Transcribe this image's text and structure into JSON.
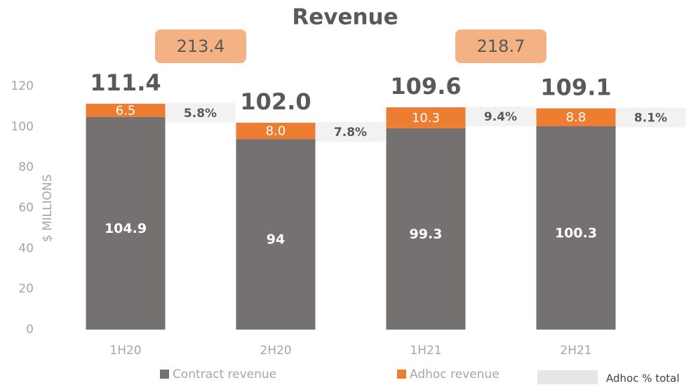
{
  "chart_data": {
    "type": "bar",
    "stacked": true,
    "title": "Revenue",
    "ylabel": "$ MILLIONS",
    "categories": [
      "1H20",
      "2H20",
      "1H21",
      "2H21"
    ],
    "series": [
      {
        "name": "Contract revenue",
        "color": "#767171",
        "values": [
          104.9,
          94,
          99.3,
          100.3
        ]
      },
      {
        "name": "Adhoc revenue",
        "color": "#ed7d31",
        "values": [
          6.5,
          8.0,
          10.3,
          8.8
        ],
        "value_labels": [
          "6.5",
          "8.0",
          "10.3",
          "8.8"
        ]
      }
    ],
    "adhoc_share": {
      "name": "Adhoc % total",
      "color": "#e7e6e6",
      "values": [
        5.8,
        7.8,
        9.4,
        8.1
      ],
      "value_labels": [
        "5.8%",
        "7.8%",
        "9.4%",
        "8.1%"
      ]
    },
    "totals": {
      "values": [
        111.4,
        102.0,
        109.6,
        109.1
      ],
      "value_labels": [
        "111.4",
        "102.0",
        "109.6",
        "109.1"
      ]
    },
    "annual_totals": {
      "color": "#f4b183",
      "values": [
        213.4,
        218.7
      ]
    },
    "ylim": [
      0,
      120
    ],
    "yticks": [
      0,
      20,
      40,
      60,
      80,
      100,
      120
    ],
    "grid": false
  }
}
